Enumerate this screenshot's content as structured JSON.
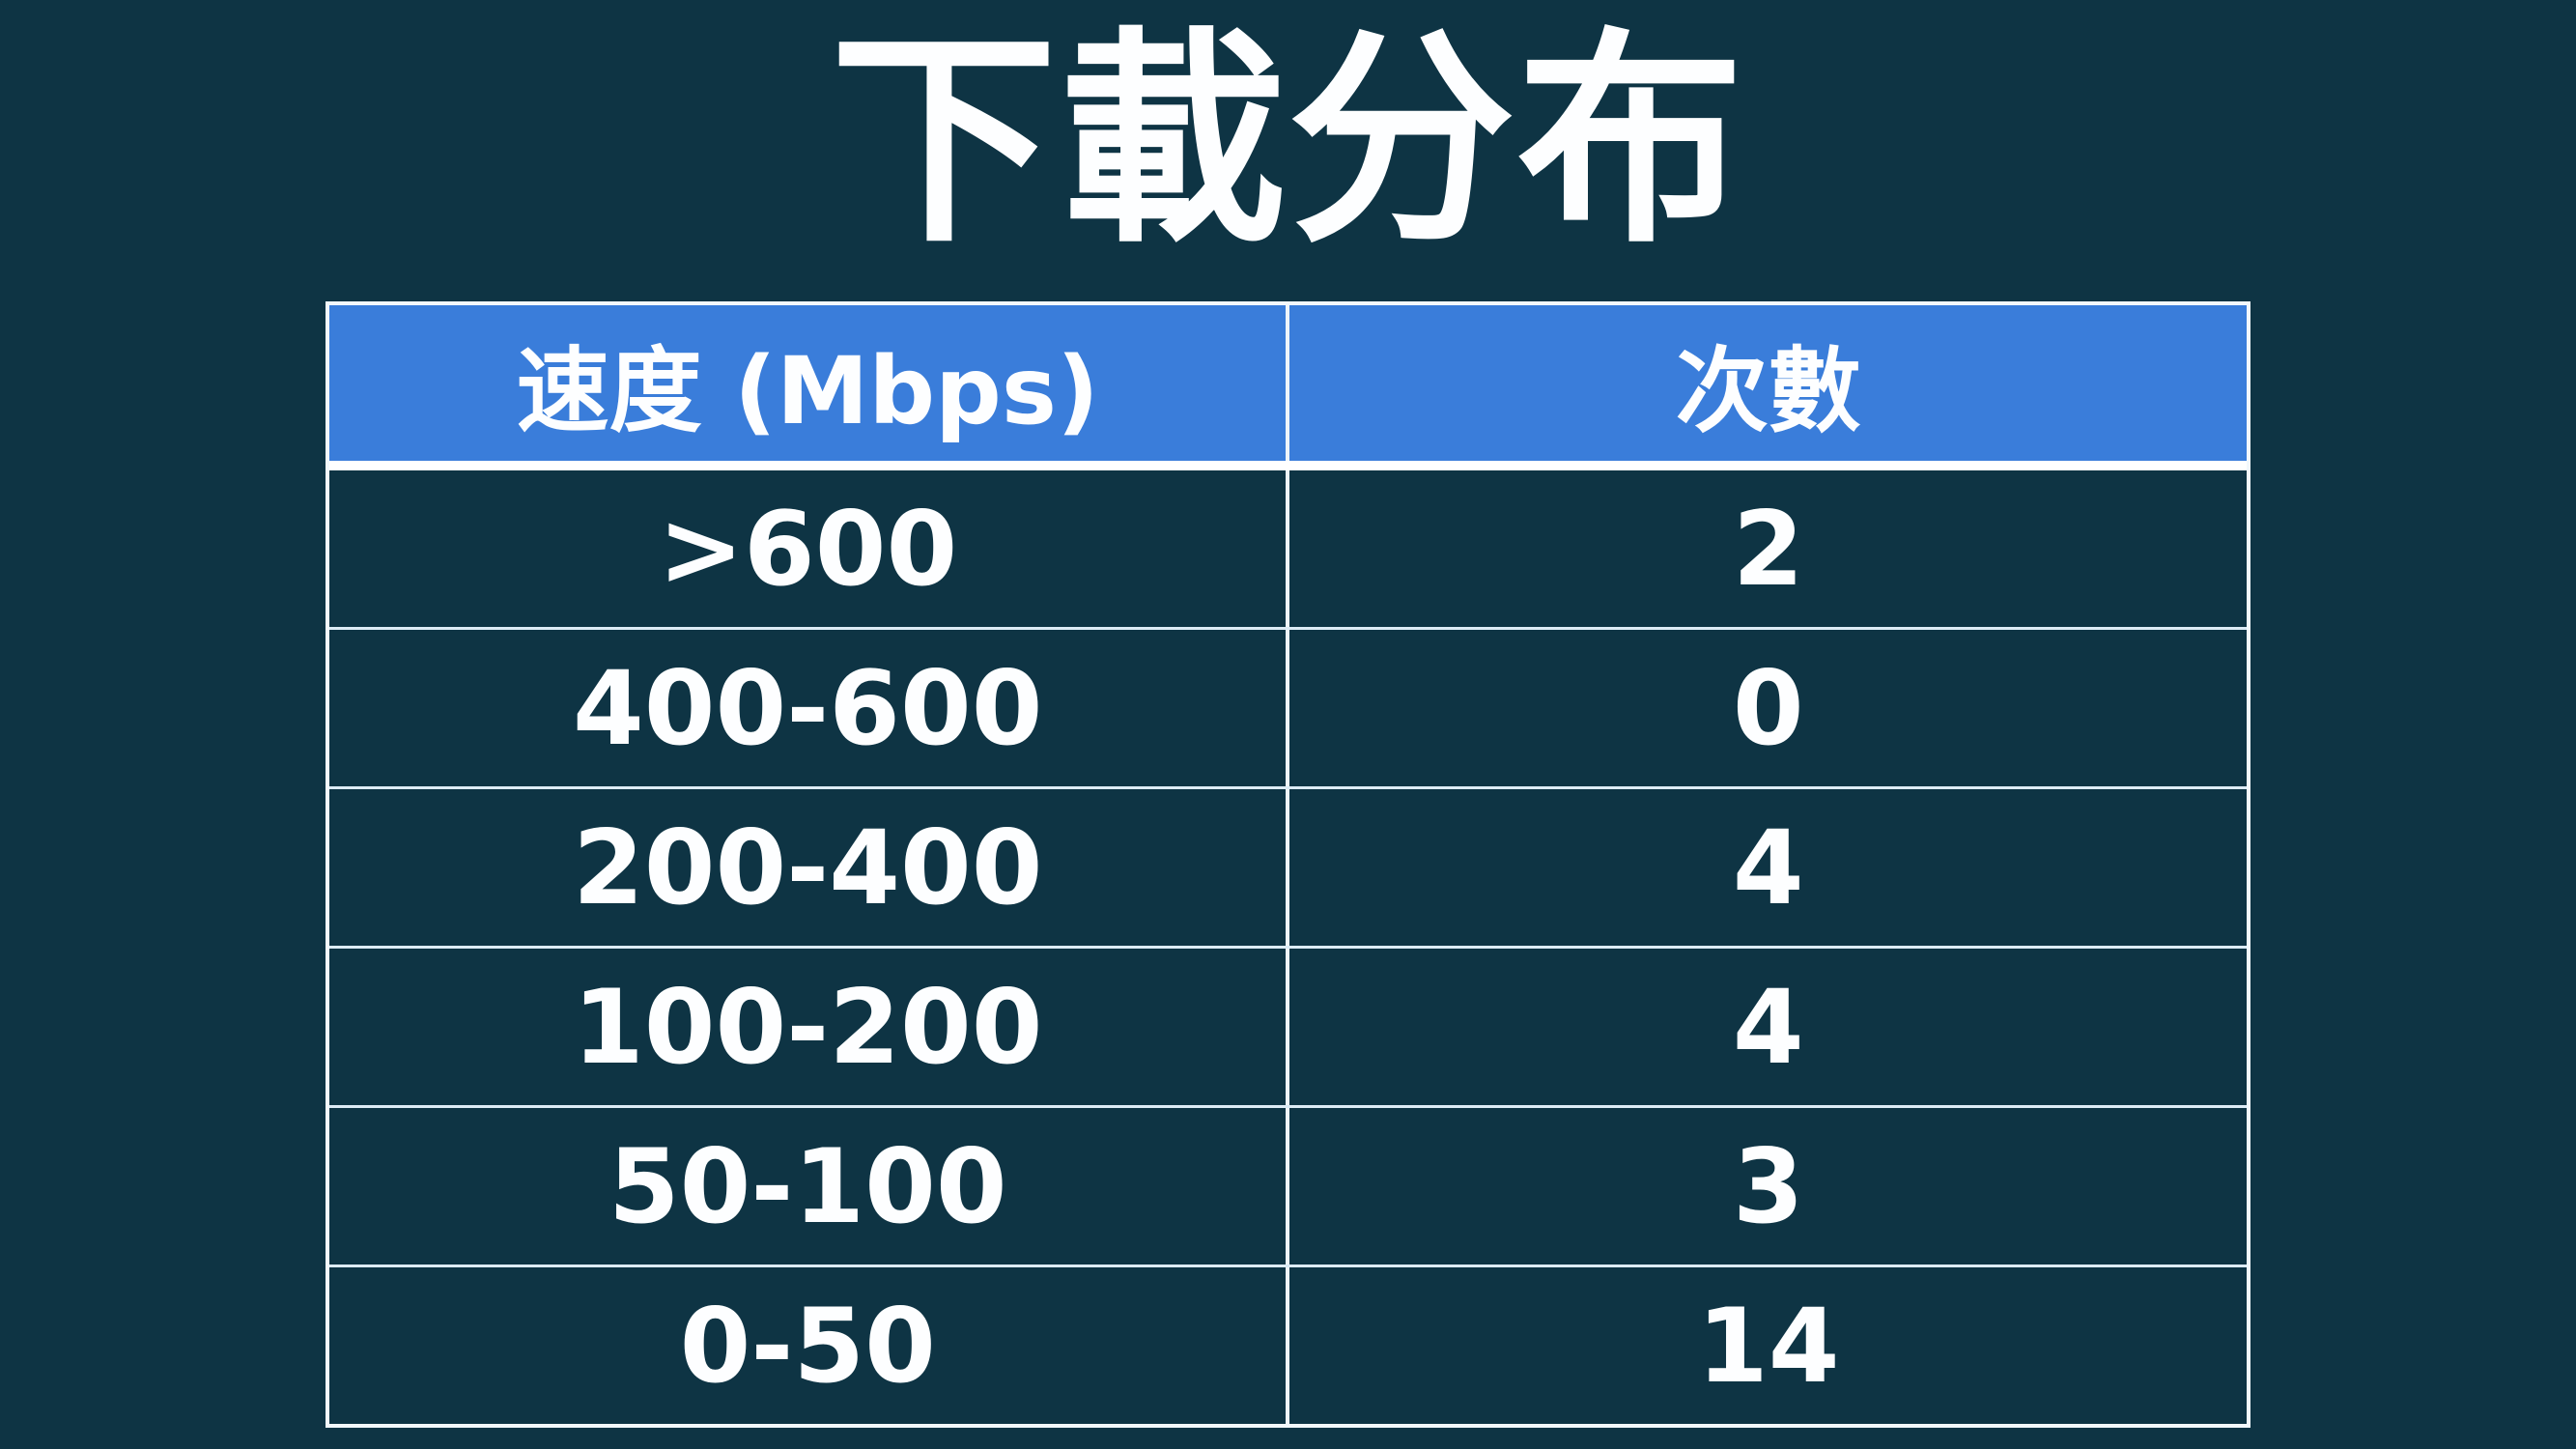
{
  "slide": {
    "title": "下載分布"
  },
  "table": {
    "columns": [
      {
        "label": "速度 (Mbps)"
      },
      {
        "label": "次數"
      }
    ],
    "rows": [
      {
        "speed": ">600",
        "count": "2"
      },
      {
        "speed": "400-600",
        "count": "0"
      },
      {
        "speed": "200-400",
        "count": "4"
      },
      {
        "speed": "100-200",
        "count": "4"
      },
      {
        "speed": "50-100",
        "count": "3"
      },
      {
        "speed": "0-50",
        "count": "14"
      }
    ]
  },
  "colors": {
    "background": "#0e3444",
    "header_background": "#3a7dda",
    "outer_border": "#f2f8fc",
    "row_divider": "#dcebf5",
    "text": "#fdfeff"
  }
}
